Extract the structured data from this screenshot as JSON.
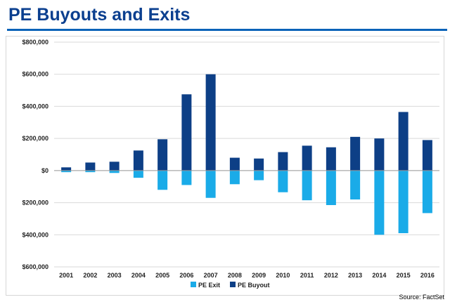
{
  "header": {
    "title": "PE Buyouts and Exits"
  },
  "source": "Source: FactSet",
  "colors": {
    "title": "#0b3f8f",
    "rule": "#0b63b8",
    "exit": "#1aabe8",
    "buyout": "#0d3f86",
    "grid": "#d9d9d9"
  },
  "chart_data": {
    "type": "bar",
    "title": "",
    "xlabel": "",
    "ylabel": "",
    "ylim": [
      -600000,
      800000
    ],
    "yticks": [
      800000,
      600000,
      400000,
      200000,
      0,
      -200000,
      -400000,
      -600000
    ],
    "ytick_labels": [
      "$800,000",
      "$600,000",
      "$400,000",
      "$200,000",
      "$0",
      "$200,000",
      "$400,000",
      "$600,000"
    ],
    "grid": true,
    "legend": "bottom",
    "categories": [
      "2001",
      "2002",
      "2003",
      "2004",
      "2005",
      "2006",
      "2007",
      "2008",
      "2009",
      "2010",
      "2011",
      "2012",
      "2013",
      "2014",
      "2015",
      "2016"
    ],
    "series": [
      {
        "name": "PE Exit",
        "color": "#1aabe8",
        "values": [
          -10000,
          -10000,
          -15000,
          -45000,
          -120000,
          -90000,
          -170000,
          -85000,
          -60000,
          -135000,
          -185000,
          -215000,
          -180000,
          -400000,
          -390000,
          -265000
        ]
      },
      {
        "name": "PE Buyout",
        "color": "#0d3f86",
        "values": [
          20000,
          50000,
          55000,
          125000,
          195000,
          475000,
          600000,
          80000,
          75000,
          115000,
          155000,
          145000,
          210000,
          200000,
          365000,
          190000
        ]
      }
    ]
  }
}
